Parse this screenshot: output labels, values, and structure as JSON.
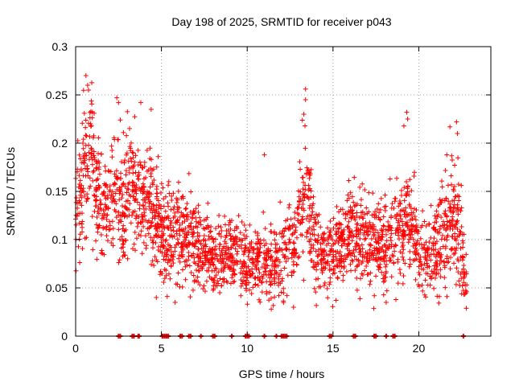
{
  "chart_data": {
    "type": "scatter",
    "title": "Day 198 of 2025, SRMTID for receiver p043",
    "xlabel": "GPS time / hours",
    "ylabel": "SRMTID / TECUs",
    "xlim": [
      0,
      24.2
    ],
    "ylim": [
      0,
      0.3
    ],
    "x_ticks": [
      0,
      5,
      10,
      15,
      20
    ],
    "y_ticks": [
      0,
      0.05,
      0.1,
      0.15,
      0.2,
      0.25,
      0.3
    ],
    "x_tick_labels": [
      "0",
      "5",
      "10",
      "15",
      "20"
    ],
    "y_tick_labels": [
      "0",
      "0.05",
      "0.1",
      "0.15",
      "0.2",
      "0.25",
      "0.3"
    ],
    "grid": true,
    "marker": "+",
    "color": "#ff0000",
    "series": [
      {
        "name": "SRMTID",
        "envelope": [
          [
            0.0,
            0.12,
            0.05
          ],
          [
            0.5,
            0.17,
            0.06
          ],
          [
            0.8,
            0.19,
            0.06
          ],
          [
            1.2,
            0.16,
            0.06
          ],
          [
            1.7,
            0.13,
            0.04
          ],
          [
            2.3,
            0.15,
            0.06
          ],
          [
            2.8,
            0.13,
            0.05
          ],
          [
            3.1,
            0.16,
            0.05
          ],
          [
            3.7,
            0.15,
            0.06
          ],
          [
            4.3,
            0.13,
            0.05
          ],
          [
            5.0,
            0.11,
            0.05
          ],
          [
            5.5,
            0.1,
            0.05
          ],
          [
            6.2,
            0.11,
            0.045
          ],
          [
            7.0,
            0.1,
            0.04
          ],
          [
            8.0,
            0.08,
            0.03
          ],
          [
            9.0,
            0.09,
            0.03
          ],
          [
            10.0,
            0.08,
            0.035
          ],
          [
            11.0,
            0.075,
            0.03
          ],
          [
            12.0,
            0.08,
            0.04
          ],
          [
            12.8,
            0.1,
            0.04
          ],
          [
            13.4,
            0.15,
            0.06
          ],
          [
            14.0,
            0.09,
            0.04
          ],
          [
            15.0,
            0.085,
            0.035
          ],
          [
            16.0,
            0.11,
            0.04
          ],
          [
            17.0,
            0.1,
            0.04
          ],
          [
            18.0,
            0.09,
            0.04
          ],
          [
            19.0,
            0.11,
            0.05
          ],
          [
            19.5,
            0.12,
            0.05
          ],
          [
            20.0,
            0.085,
            0.035
          ],
          [
            21.0,
            0.09,
            0.04
          ],
          [
            22.0,
            0.12,
            0.06
          ],
          [
            22.5,
            0.09,
            0.05
          ],
          [
            22.8,
            0.06,
            0.03
          ]
        ],
        "point_count": 2500,
        "highlights": [
          [
            0.6,
            0.27
          ],
          [
            0.7,
            0.26
          ],
          [
            0.75,
            0.255
          ],
          [
            2.4,
            0.247
          ],
          [
            2.5,
            0.242
          ],
          [
            3.8,
            0.242
          ],
          [
            4.4,
            0.235
          ],
          [
            13.4,
            0.256
          ],
          [
            13.4,
            0.245
          ],
          [
            13.3,
            0.23
          ],
          [
            19.3,
            0.232
          ],
          [
            19.35,
            0.225
          ],
          [
            22.2,
            0.222
          ],
          [
            22.25,
            0.21
          ],
          [
            11.0,
            0.188
          ],
          [
            12.7,
            0.03
          ],
          [
            11.4,
            0.028
          ],
          [
            8.4,
            0.045
          ],
          [
            18.1,
            0.035
          ],
          [
            5.8,
            0.035
          ]
        ]
      }
    ],
    "zero_points_x": [
      2.5,
      2.6,
      3.3,
      3.4,
      3.65,
      3.7,
      5.05,
      5.1,
      5.2,
      5.3,
      5.4,
      6.1,
      6.2,
      6.6,
      6.7,
      7.3,
      8.0,
      8.1,
      9.1,
      9.9,
      10.0,
      10.1,
      11.0,
      11.7,
      12.0,
      12.1,
      12.2,
      12.3,
      14.8,
      14.9,
      16.2,
      16.3,
      17.4,
      17.5,
      18.1,
      18.5,
      18.6,
      22.6
    ]
  }
}
